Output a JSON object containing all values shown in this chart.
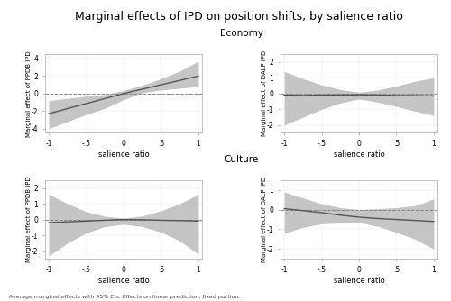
{
  "title": "Marginal effects of IPD on position shifts, by salience ratio",
  "title_fontsize": 9,
  "xlabel": "salience ratio",
  "footnote": "Average marginal effects with 95% CIs. Effects on linear prediction, fixed portion.",
  "x": [
    -1.0,
    -0.75,
    -0.5,
    -0.25,
    0.0,
    0.25,
    0.5,
    0.75,
    1.0
  ],
  "panels": [
    {
      "ylabel": "Marginal effect of PPDB IPD",
      "ylim": [
        -4.5,
        4.5
      ],
      "yticks": [
        -4,
        -2,
        0,
        2,
        4
      ],
      "line": [
        -2.3,
        -1.72,
        -1.15,
        -0.57,
        0.0,
        0.5,
        1.0,
        1.5,
        2.0
      ],
      "ci_upper": [
        -0.8,
        -0.55,
        -0.3,
        -0.1,
        0.35,
        0.95,
        1.7,
        2.55,
        3.7
      ],
      "ci_lower": [
        -4.0,
        -3.2,
        -2.4,
        -1.7,
        -0.7,
        0.1,
        0.4,
        0.6,
        0.8
      ]
    },
    {
      "ylabel": "Marginal effect of DALP IPD",
      "ylim": [
        -2.5,
        2.5
      ],
      "yticks": [
        -2,
        -1,
        0,
        1,
        2
      ],
      "line": [
        -0.1,
        -0.12,
        -0.1,
        -0.09,
        -0.08,
        -0.1,
        -0.12,
        -0.13,
        -0.15
      ],
      "ci_upper": [
        1.4,
        0.95,
        0.55,
        0.25,
        0.08,
        0.22,
        0.48,
        0.78,
        1.0
      ],
      "ci_lower": [
        -2.0,
        -1.5,
        -1.0,
        -0.6,
        -0.35,
        -0.55,
        -0.82,
        -1.12,
        -1.4
      ]
    },
    {
      "ylabel": "Marginal effect of PPDB IPD",
      "ylim": [
        -2.5,
        2.5
      ],
      "yticks": [
        -2,
        -1,
        0,
        1,
        2
      ],
      "line": [
        -0.2,
        -0.15,
        -0.1,
        -0.05,
        0.0,
        -0.02,
        -0.05,
        -0.07,
        -0.1
      ],
      "ci_upper": [
        1.6,
        1.0,
        0.5,
        0.2,
        0.08,
        0.22,
        0.55,
        1.0,
        1.6
      ],
      "ci_lower": [
        -2.3,
        -1.5,
        -0.85,
        -0.45,
        -0.3,
        -0.45,
        -0.8,
        -1.35,
        -2.2
      ]
    },
    {
      "ylabel": "Marginal effect of DALP IPD",
      "ylim": [
        -2.5,
        1.5
      ],
      "yticks": [
        -2,
        -1,
        0,
        1
      ],
      "line": [
        0.05,
        -0.05,
        -0.15,
        -0.28,
        -0.38,
        -0.45,
        -0.5,
        -0.55,
        -0.6
      ],
      "ci_upper": [
        0.9,
        0.6,
        0.3,
        0.1,
        0.0,
        0.05,
        0.1,
        0.2,
        0.55
      ],
      "ci_lower": [
        -1.2,
        -0.9,
        -0.72,
        -0.68,
        -0.65,
        -0.85,
        -1.15,
        -1.5,
        -2.0
      ]
    }
  ],
  "bg_color": "#ffffff",
  "ci_color": "#bbbbbb",
  "line_color": "#555555",
  "dashed_color": "#888888",
  "xticks": [
    -1.0,
    -0.5,
    0.0,
    0.5,
    1.0
  ],
  "xtick_labels": [
    "-1",
    "-.5",
    "0",
    ".5",
    "1"
  ]
}
